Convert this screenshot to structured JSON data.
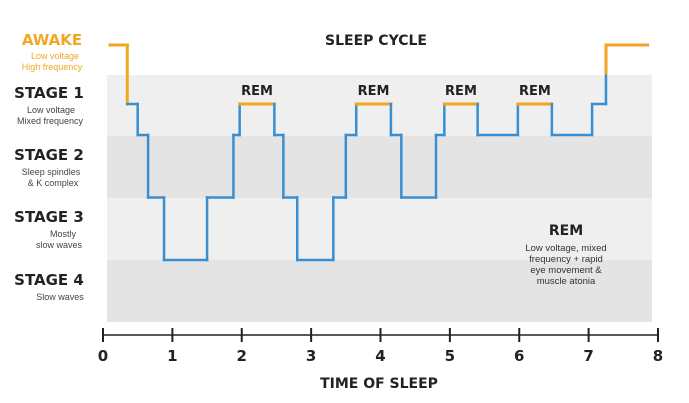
{
  "chart_data": {
    "type": "line",
    "title": "SLEEP CYCLE",
    "xlabel": "TIME OF SLEEP",
    "xlim": [
      0,
      8
    ],
    "x_ticks": [
      "0",
      "1",
      "2",
      "3",
      "4",
      "5",
      "6",
      "7",
      "8"
    ],
    "stages": [
      {
        "name": "AWAKE",
        "desc": [
          "Low voltage",
          "High frequency"
        ]
      },
      {
        "name": "STAGE 1",
        "desc": [
          "Low voltage",
          "Mixed frequency"
        ]
      },
      {
        "name": "STAGE 2",
        "desc": [
          "Sleep spindles",
          "& K complex"
        ]
      },
      {
        "name": "STAGE 3",
        "desc": [
          "Mostly",
          "slow waves"
        ]
      },
      {
        "name": "STAGE 4",
        "desc": [
          "Slow waves"
        ]
      }
    ],
    "hypnogram": [
      [
        0.1,
        0
      ],
      [
        0.35,
        0
      ],
      [
        0.35,
        1
      ],
      [
        0.5,
        1
      ],
      [
        0.5,
        1.5
      ],
      [
        0.65,
        1.5
      ],
      [
        0.65,
        2.5
      ],
      [
        0.88,
        2.5
      ],
      [
        0.88,
        3.5
      ],
      [
        1.5,
        3.5
      ],
      [
        1.5,
        2.5
      ],
      [
        1.88,
        2.5
      ],
      [
        1.88,
        1.5
      ],
      [
        1.97,
        1.5
      ],
      [
        1.97,
        1
      ],
      [
        2.47,
        1
      ],
      [
        2.47,
        1.5
      ],
      [
        2.6,
        1.5
      ],
      [
        2.6,
        2.5
      ],
      [
        2.8,
        2.5
      ],
      [
        2.8,
        3.5
      ],
      [
        3.32,
        3.5
      ],
      [
        3.32,
        2.5
      ],
      [
        3.5,
        2.5
      ],
      [
        3.5,
        1.5
      ],
      [
        3.65,
        1.5
      ],
      [
        3.65,
        1
      ],
      [
        4.15,
        1
      ],
      [
        4.15,
        1.5
      ],
      [
        4.3,
        1.5
      ],
      [
        4.3,
        2.5
      ],
      [
        4.8,
        2.5
      ],
      [
        4.8,
        1.5
      ],
      [
        4.92,
        1.5
      ],
      [
        4.92,
        1
      ],
      [
        5.4,
        1
      ],
      [
        5.4,
        1.5
      ],
      [
        5.98,
        1.5
      ],
      [
        5.98,
        1
      ],
      [
        6.47,
        1
      ],
      [
        6.47,
        1.5
      ],
      [
        7.05,
        1.5
      ],
      [
        7.05,
        1
      ],
      [
        7.25,
        1
      ],
      [
        7.25,
        0
      ],
      [
        7.85,
        0
      ]
    ],
    "rem_periods": [
      {
        "label": "REM",
        "start": 1.97,
        "end": 2.47
      },
      {
        "label": "REM",
        "start": 3.65,
        "end": 4.15
      },
      {
        "label": "REM",
        "start": 4.92,
        "end": 5.4
      },
      {
        "label": "REM",
        "start": 5.98,
        "end": 6.47
      }
    ],
    "awake_periods": [
      {
        "start": 0.1,
        "end": 0.35
      },
      {
        "start": 7.25,
        "end": 7.85
      }
    ],
    "legend": {
      "title": "REM",
      "text": [
        "Low voltage, mixed",
        "frequency + rapid",
        "eye movement &",
        "muscle atonia"
      ]
    },
    "colors": {
      "sleep_line": "#3a8fd1",
      "awake_rem": "#f2a623",
      "band_light": "#efefef",
      "band_dark": "#e4e4e4",
      "axis": "#222222"
    }
  }
}
